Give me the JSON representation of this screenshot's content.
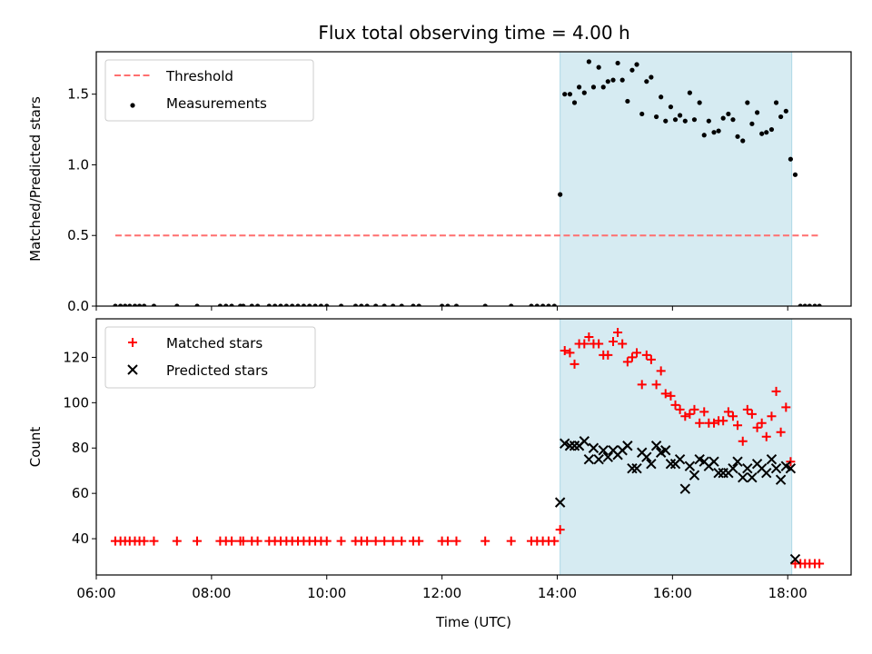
{
  "title": "Flux total observing time = 4.00 h",
  "chart_data": [
    {
      "type": "scatter",
      "panel": "top",
      "ylabel": "Matched/Predicted stars",
      "xlabel": "",
      "xlim": [
        6.0,
        19.1
      ],
      "ylim": [
        0,
        1.8
      ],
      "yticks": [
        0.0,
        0.5,
        1.0,
        1.5
      ],
      "ytick_labels": [
        "0.0",
        "0.5",
        "1.0",
        "1.5"
      ],
      "shaded_span": [
        14.05,
        18.07
      ],
      "legend": {
        "placement": "top-left",
        "entries": [
          "Threshold",
          "Measurements"
        ]
      },
      "threshold": {
        "name": "Threshold",
        "x": [
          6.33,
          18.55
        ],
        "y": 0.5,
        "color": "#ff6f6f",
        "style": "dashed"
      },
      "series": [
        {
          "name": "Measurements",
          "marker": "dot",
          "color": "#000000",
          "points": [
            [
              6.33,
              0
            ],
            [
              6.42,
              0
            ],
            [
              6.5,
              0
            ],
            [
              6.58,
              0
            ],
            [
              6.67,
              0
            ],
            [
              6.75,
              0
            ],
            [
              6.83,
              0
            ],
            [
              7.0,
              0
            ],
            [
              7.4,
              0
            ],
            [
              7.75,
              0
            ],
            [
              8.15,
              0
            ],
            [
              8.25,
              0
            ],
            [
              8.35,
              0
            ],
            [
              8.5,
              0
            ],
            [
              8.55,
              0
            ],
            [
              8.7,
              0
            ],
            [
              8.8,
              0
            ],
            [
              9.0,
              0
            ],
            [
              9.1,
              0
            ],
            [
              9.2,
              0
            ],
            [
              9.3,
              0
            ],
            [
              9.4,
              0
            ],
            [
              9.5,
              0
            ],
            [
              9.6,
              0
            ],
            [
              9.7,
              0
            ],
            [
              9.8,
              0
            ],
            [
              9.9,
              0
            ],
            [
              10.0,
              0
            ],
            [
              10.25,
              0
            ],
            [
              10.5,
              0
            ],
            [
              10.6,
              0
            ],
            [
              10.7,
              0
            ],
            [
              10.85,
              0
            ],
            [
              11.0,
              0
            ],
            [
              11.15,
              0
            ],
            [
              11.3,
              0
            ],
            [
              11.5,
              0
            ],
            [
              11.6,
              0
            ],
            [
              12.0,
              0
            ],
            [
              12.1,
              0
            ],
            [
              12.25,
              0
            ],
            [
              12.75,
              0
            ],
            [
              13.2,
              0
            ],
            [
              13.55,
              0
            ],
            [
              13.65,
              0
            ],
            [
              13.75,
              0
            ],
            [
              13.85,
              0
            ],
            [
              13.95,
              0
            ],
            [
              14.05,
              0.79
            ],
            [
              14.13,
              1.5
            ],
            [
              14.22,
              1.5
            ],
            [
              14.3,
              1.44
            ],
            [
              14.38,
              1.55
            ],
            [
              14.47,
              1.51
            ],
            [
              14.55,
              1.73
            ],
            [
              14.63,
              1.55
            ],
            [
              14.72,
              1.69
            ],
            [
              14.8,
              1.55
            ],
            [
              14.88,
              1.59
            ],
            [
              14.97,
              1.6
            ],
            [
              15.05,
              1.72
            ],
            [
              15.13,
              1.6
            ],
            [
              15.22,
              1.45
            ],
            [
              15.3,
              1.67
            ],
            [
              15.38,
              1.71
            ],
            [
              15.47,
              1.36
            ],
            [
              15.55,
              1.59
            ],
            [
              15.63,
              1.62
            ],
            [
              15.72,
              1.34
            ],
            [
              15.8,
              1.48
            ],
            [
              15.88,
              1.31
            ],
            [
              15.97,
              1.41
            ],
            [
              16.05,
              1.32
            ],
            [
              16.13,
              1.35
            ],
            [
              16.22,
              1.31
            ],
            [
              16.3,
              1.51
            ],
            [
              16.38,
              1.32
            ],
            [
              16.47,
              1.44
            ],
            [
              16.55,
              1.21
            ],
            [
              16.63,
              1.31
            ],
            [
              16.72,
              1.23
            ],
            [
              16.8,
              1.24
            ],
            [
              16.88,
              1.33
            ],
            [
              16.97,
              1.36
            ],
            [
              17.05,
              1.32
            ],
            [
              17.13,
              1.2
            ],
            [
              17.22,
              1.17
            ],
            [
              17.3,
              1.44
            ],
            [
              17.38,
              1.29
            ],
            [
              17.47,
              1.37
            ],
            [
              17.55,
              1.22
            ],
            [
              17.63,
              1.23
            ],
            [
              17.72,
              1.25
            ],
            [
              17.8,
              1.44
            ],
            [
              17.88,
              1.34
            ],
            [
              17.97,
              1.38
            ],
            [
              18.05,
              1.04
            ],
            [
              18.13,
              0.93
            ],
            [
              18.22,
              0
            ],
            [
              18.3,
              0
            ],
            [
              18.38,
              0
            ],
            [
              18.47,
              0
            ],
            [
              18.55,
              0
            ]
          ]
        }
      ]
    },
    {
      "type": "scatter",
      "panel": "bottom",
      "ylabel": "Count",
      "xlabel": "Time (UTC)",
      "xlim": [
        6.0,
        19.1
      ],
      "ylim": [
        24,
        137
      ],
      "yticks": [
        40,
        60,
        80,
        100,
        120
      ],
      "ytick_labels": [
        "40",
        "60",
        "80",
        "100",
        "120"
      ],
      "xticks": [
        6,
        8,
        10,
        12,
        14,
        16,
        18
      ],
      "xtick_labels": [
        "06:00",
        "08:00",
        "10:00",
        "12:00",
        "14:00",
        "16:00",
        "18:00"
      ],
      "shaded_span": [
        14.05,
        18.07
      ],
      "legend": {
        "placement": "top-left",
        "entries": [
          "Matched stars",
          "Predicted stars"
        ]
      },
      "series": [
        {
          "name": "Matched stars",
          "marker": "plus",
          "color": "#ff0000",
          "points": [
            [
              6.33,
              39
            ],
            [
              6.42,
              39
            ],
            [
              6.5,
              39
            ],
            [
              6.58,
              39
            ],
            [
              6.67,
              39
            ],
            [
              6.75,
              39
            ],
            [
              6.83,
              39
            ],
            [
              7.0,
              39
            ],
            [
              7.4,
              39
            ],
            [
              7.75,
              39
            ],
            [
              8.15,
              39
            ],
            [
              8.25,
              39
            ],
            [
              8.35,
              39
            ],
            [
              8.5,
              39
            ],
            [
              8.55,
              39
            ],
            [
              8.7,
              39
            ],
            [
              8.8,
              39
            ],
            [
              9.0,
              39
            ],
            [
              9.1,
              39
            ],
            [
              9.2,
              39
            ],
            [
              9.3,
              39
            ],
            [
              9.4,
              39
            ],
            [
              9.5,
              39
            ],
            [
              9.6,
              39
            ],
            [
              9.7,
              39
            ],
            [
              9.8,
              39
            ],
            [
              9.9,
              39
            ],
            [
              10.0,
              39
            ],
            [
              10.25,
              39
            ],
            [
              10.5,
              39
            ],
            [
              10.6,
              39
            ],
            [
              10.7,
              39
            ],
            [
              10.85,
              39
            ],
            [
              11.0,
              39
            ],
            [
              11.15,
              39
            ],
            [
              11.3,
              39
            ],
            [
              11.5,
              39
            ],
            [
              11.6,
              39
            ],
            [
              12.0,
              39
            ],
            [
              12.1,
              39
            ],
            [
              12.25,
              39
            ],
            [
              12.75,
              39
            ],
            [
              13.2,
              39
            ],
            [
              13.55,
              39
            ],
            [
              13.65,
              39
            ],
            [
              13.75,
              39
            ],
            [
              13.85,
              39
            ],
            [
              13.95,
              39
            ],
            [
              14.05,
              44
            ],
            [
              14.13,
              123
            ],
            [
              14.22,
              122
            ],
            [
              14.3,
              117
            ],
            [
              14.38,
              126
            ],
            [
              14.47,
              126
            ],
            [
              14.55,
              129
            ],
            [
              14.63,
              126
            ],
            [
              14.72,
              126
            ],
            [
              14.8,
              121
            ],
            [
              14.88,
              121
            ],
            [
              14.97,
              127
            ],
            [
              15.05,
              131
            ],
            [
              15.13,
              126
            ],
            [
              15.22,
              118
            ],
            [
              15.3,
              120
            ],
            [
              15.38,
              122
            ],
            [
              15.47,
              108
            ],
            [
              15.55,
              121
            ],
            [
              15.63,
              119
            ],
            [
              15.72,
              108
            ],
            [
              15.8,
              114
            ],
            [
              15.88,
              104
            ],
            [
              15.97,
              103
            ],
            [
              16.05,
              99
            ],
            [
              16.13,
              97
            ],
            [
              16.22,
              94
            ],
            [
              16.3,
              95
            ],
            [
              16.38,
              97
            ],
            [
              16.47,
              91
            ],
            [
              16.55,
              96
            ],
            [
              16.63,
              91
            ],
            [
              16.72,
              91
            ],
            [
              16.8,
              92
            ],
            [
              16.88,
              92
            ],
            [
              16.97,
              96
            ],
            [
              17.05,
              94
            ],
            [
              17.13,
              90
            ],
            [
              17.22,
              83
            ],
            [
              17.3,
              97
            ],
            [
              17.38,
              95
            ],
            [
              17.47,
              89
            ],
            [
              17.55,
              91
            ],
            [
              17.63,
              85
            ],
            [
              17.72,
              94
            ],
            [
              17.8,
              105
            ],
            [
              17.88,
              87
            ],
            [
              17.97,
              98
            ],
            [
              18.05,
              74
            ],
            [
              18.13,
              29
            ],
            [
              18.22,
              29
            ],
            [
              18.3,
              29
            ],
            [
              18.38,
              29
            ],
            [
              18.47,
              29
            ],
            [
              18.55,
              29
            ]
          ]
        },
        {
          "name": "Predicted stars",
          "marker": "x",
          "color": "#000000",
          "points": [
            [
              14.05,
              56
            ],
            [
              14.13,
              82
            ],
            [
              14.22,
              81
            ],
            [
              14.3,
              81
            ],
            [
              14.38,
              81
            ],
            [
              14.47,
              83
            ],
            [
              14.55,
              75
            ],
            [
              14.63,
              80
            ],
            [
              14.72,
              75
            ],
            [
              14.8,
              79
            ],
            [
              14.88,
              76
            ],
            [
              14.97,
              79
            ],
            [
              15.05,
              77
            ],
            [
              15.13,
              79
            ],
            [
              15.22,
              81
            ],
            [
              15.3,
              71
            ],
            [
              15.38,
              71
            ],
            [
              15.47,
              78
            ],
            [
              15.55,
              76
            ],
            [
              15.63,
              73
            ],
            [
              15.72,
              81
            ],
            [
              15.8,
              78
            ],
            [
              15.88,
              79
            ],
            [
              15.97,
              73
            ],
            [
              16.05,
              73
            ],
            [
              16.13,
              75
            ],
            [
              16.22,
              62
            ],
            [
              16.3,
              72
            ],
            [
              16.38,
              68
            ],
            [
              16.47,
              75
            ],
            [
              16.55,
              74
            ],
            [
              16.63,
              72
            ],
            [
              16.72,
              74
            ],
            [
              16.8,
              69
            ],
            [
              16.88,
              69
            ],
            [
              16.97,
              69
            ],
            [
              17.05,
              71
            ],
            [
              17.13,
              74
            ],
            [
              17.22,
              67
            ],
            [
              17.3,
              71
            ],
            [
              17.38,
              67
            ],
            [
              17.47,
              73
            ],
            [
              17.55,
              71
            ],
            [
              17.63,
              69
            ],
            [
              17.72,
              75
            ],
            [
              17.8,
              71
            ],
            [
              17.88,
              66
            ],
            [
              17.97,
              72
            ],
            [
              18.05,
              71
            ],
            [
              18.13,
              31
            ]
          ]
        }
      ]
    }
  ]
}
